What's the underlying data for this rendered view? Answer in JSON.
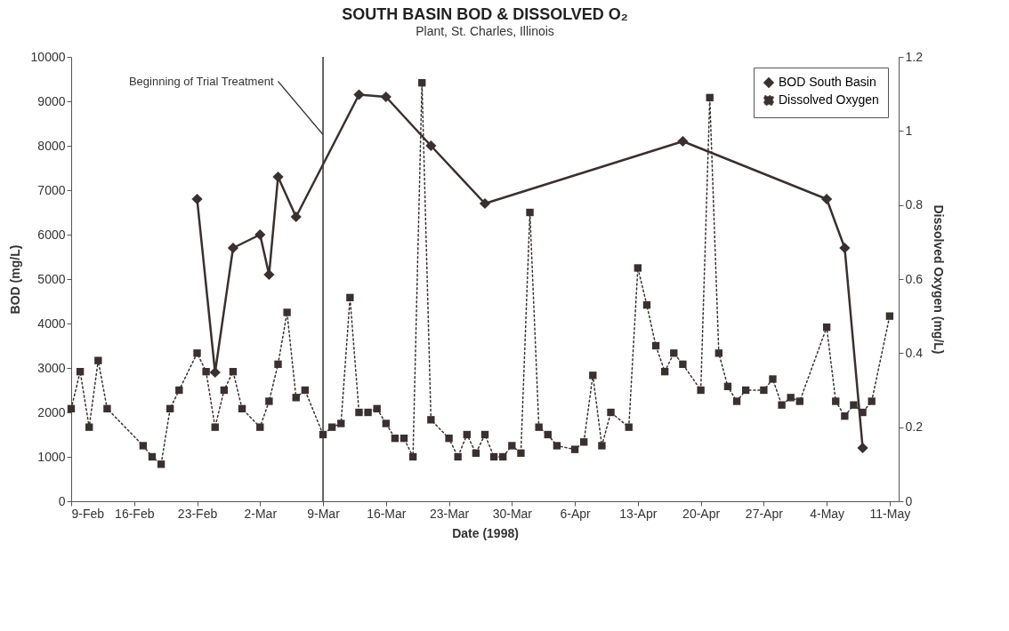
{
  "chart_data": {
    "type": "line",
    "title": "SOUTH BASIN BOD & DISSOLVED O₂",
    "subtitle": "Plant, St. Charles, Illinois",
    "xlabel": "Date (1998)",
    "ylabel": "BOD (mg/L)",
    "y2label": "Dissolved Oxygen (mg/L)",
    "xlim": [
      "1998-02-09",
      "1998-05-12"
    ],
    "xticks": [
      {
        "value": "1998-02-09",
        "label": "9-Feb"
      },
      {
        "value": "1998-02-16",
        "label": "16-Feb"
      },
      {
        "value": "1998-02-23",
        "label": "23-Feb"
      },
      {
        "value": "1998-03-02",
        "label": "2-Mar"
      },
      {
        "value": "1998-03-09",
        "label": "9-Mar"
      },
      {
        "value": "1998-03-16",
        "label": "16-Mar"
      },
      {
        "value": "1998-03-23",
        "label": "23-Mar"
      },
      {
        "value": "1998-03-30",
        "label": "30-Mar"
      },
      {
        "value": "1998-04-06",
        "label": "6-Apr"
      },
      {
        "value": "1998-04-13",
        "label": "13-Apr"
      },
      {
        "value": "1998-04-20",
        "label": "20-Apr"
      },
      {
        "value": "1998-04-27",
        "label": "27-Apr"
      },
      {
        "value": "1998-05-04",
        "label": "4-May"
      },
      {
        "value": "1998-05-11",
        "label": "11-May"
      }
    ],
    "ylim": [
      0,
      10000
    ],
    "yticks": [
      0,
      1000,
      2000,
      3000,
      4000,
      5000,
      6000,
      7000,
      8000,
      9000,
      10000
    ],
    "y2lim": [
      0,
      1.2
    ],
    "y2ticks": [
      0,
      0.2,
      0.4,
      0.6,
      0.8,
      1,
      1.2
    ],
    "grid": false,
    "legend": "top right",
    "ref_lines": [
      {
        "axis": "x",
        "value": "1998-03-09",
        "color": "#3a3030"
      }
    ],
    "annotations": [
      {
        "text": "Beginning of Trial Treatment",
        "x": "1998-03-09",
        "y": 8250
      }
    ],
    "series": [
      {
        "name": "BOD South Basin",
        "color": "#3a3030",
        "marker": "diamond",
        "line_style": "solid",
        "x": [
          "1998-02-23",
          "1998-02-25",
          "1998-02-27",
          "1998-03-02",
          "1998-03-03",
          "1998-03-04",
          "1998-03-06",
          "1998-03-13",
          "1998-03-16",
          "1998-03-21",
          "1998-03-27",
          "1998-04-18",
          "1998-05-04",
          "1998-05-06",
          "1998-05-08"
        ],
        "values": [
          6800,
          2900,
          5700,
          6000,
          5100,
          7300,
          6400,
          9150,
          9100,
          8000,
          6700,
          8100,
          6800,
          5700,
          1200
        ]
      },
      {
        "name": "Dissolved Oxygen",
        "color": "#3a3030",
        "marker": "square",
        "line_style": "dotted",
        "axis": "y2",
        "x": [
          "1998-02-09",
          "1998-02-10",
          "1998-02-11",
          "1998-02-12",
          "1998-02-13",
          "1998-02-17",
          "1998-02-18",
          "1998-02-19",
          "1998-02-20",
          "1998-02-21",
          "1998-02-23",
          "1998-02-24",
          "1998-02-25",
          "1998-02-26",
          "1998-02-27",
          "1998-02-28",
          "1998-03-02",
          "1998-03-03",
          "1998-03-04",
          "1998-03-05",
          "1998-03-06",
          "1998-03-07",
          "1998-03-09",
          "1998-03-10",
          "1998-03-11",
          "1998-03-12",
          "1998-03-13",
          "1998-03-14",
          "1998-03-15",
          "1998-03-16",
          "1998-03-17",
          "1998-03-18",
          "1998-03-19",
          "1998-03-20",
          "1998-03-21",
          "1998-03-23",
          "1998-03-24",
          "1998-03-25",
          "1998-03-26",
          "1998-03-27",
          "1998-03-28",
          "1998-03-29",
          "1998-03-30",
          "1998-03-31",
          "1998-04-01",
          "1998-04-02",
          "1998-04-03",
          "1998-04-04",
          "1998-04-06",
          "1998-04-07",
          "1998-04-08",
          "1998-04-09",
          "1998-04-10",
          "1998-04-12",
          "1998-04-13",
          "1998-04-14",
          "1998-04-15",
          "1998-04-16",
          "1998-04-17",
          "1998-04-18",
          "1998-04-20",
          "1998-04-21",
          "1998-04-22",
          "1998-04-23",
          "1998-04-24",
          "1998-04-25",
          "1998-04-27",
          "1998-04-28",
          "1998-04-29",
          "1998-04-30",
          "1998-05-01",
          "1998-05-04",
          "1998-05-05",
          "1998-05-06",
          "1998-05-07",
          "1998-05-08",
          "1998-05-09",
          "1998-05-11"
        ],
        "values": [
          0.25,
          0.35,
          0.2,
          0.38,
          0.25,
          0.15,
          0.12,
          0.1,
          0.25,
          0.3,
          0.4,
          0.35,
          0.2,
          0.3,
          0.35,
          0.25,
          0.2,
          0.27,
          0.37,
          0.51,
          0.28,
          0.3,
          0.18,
          0.2,
          0.21,
          0.55,
          0.24,
          0.24,
          0.25,
          0.21,
          0.17,
          0.17,
          0.12,
          1.13,
          0.22,
          0.17,
          0.12,
          0.18,
          0.13,
          0.18,
          0.12,
          0.12,
          0.15,
          0.13,
          0.78,
          0.2,
          0.18,
          0.15,
          0.14,
          0.16,
          0.34,
          0.15,
          0.24,
          0.2,
          0.63,
          0.53,
          0.42,
          0.35,
          0.4,
          0.37,
          0.3,
          1.09,
          0.4,
          0.31,
          0.27,
          0.3,
          0.3,
          0.33,
          0.26,
          0.28,
          0.27,
          0.47,
          0.27,
          0.23,
          0.26,
          0.24,
          0.27,
          0.5
        ]
      }
    ]
  }
}
